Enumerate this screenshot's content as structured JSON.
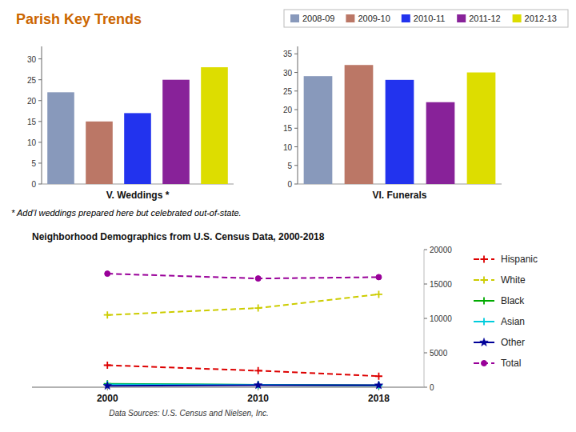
{
  "title": "Parish Key Trends",
  "chart_data": [
    {
      "type": "bar",
      "xlabel": "V. Weddings *",
      "categories": [
        "2008-09",
        "2009-10",
        "2010-11",
        "2011-12",
        "2012-13"
      ],
      "values": [
        22,
        15,
        17,
        25,
        28
      ],
      "colors": [
        "#8899BB",
        "#BB7766",
        "#2233EE",
        "#882299",
        "#DDDD00"
      ],
      "ylim": [
        0,
        33
      ],
      "yticks": [
        0,
        5,
        10,
        15,
        20,
        25,
        30
      ],
      "tick_labels": "y",
      "legend": "top-right",
      "annotations": [
        "* Add’l weddings prepared here but celebrated out-of-state."
      ]
    },
    {
      "type": "bar",
      "xlabel": "VI. Funerals",
      "categories": [
        "2008-09",
        "2009-10",
        "2010-11",
        "2011-12",
        "2012-13"
      ],
      "values": [
        29,
        32,
        28,
        22,
        30
      ],
      "colors": [
        "#8899BB",
        "#BB7766",
        "#2233EE",
        "#882299",
        "#DDDD00"
      ],
      "ylim": [
        0,
        37
      ],
      "yticks": [
        0,
        5,
        10,
        15,
        20,
        25,
        30,
        35
      ],
      "tick_labels": "y"
    },
    {
      "type": "line",
      "title": "Neighborhood Demographics from U.S. Census Data, 2000-2018",
      "x": [
        2000,
        2010,
        2018
      ],
      "xlim": [
        1995,
        2021
      ],
      "xticks": [
        2000,
        2010,
        2018
      ],
      "ylim": [
        0,
        20000
      ],
      "yticks": [
        0,
        5000,
        10000,
        15000,
        20000
      ],
      "legend": "right",
      "series": [
        {
          "name": "Hispanic",
          "color": "#DD0000",
          "line_style": "dashed",
          "marker": "plus",
          "values": [
            3200,
            2400,
            1600
          ]
        },
        {
          "name": "White",
          "color": "#CCCC00",
          "line_style": "dashed",
          "marker": "plus",
          "values": [
            10500,
            11500,
            13500
          ]
        },
        {
          "name": "Black",
          "color": "#00AA00",
          "line_style": "solid",
          "marker": "plus",
          "values": [
            500,
            350,
            250
          ]
        },
        {
          "name": "Asian",
          "color": "#00CCDD",
          "line_style": "solid",
          "marker": "plus",
          "values": [
            400,
            350,
            250
          ]
        },
        {
          "name": "Other",
          "color": "#000099",
          "line_style": "solid",
          "marker": "star",
          "values": [
            200,
            300,
            280
          ]
        },
        {
          "name": "Total",
          "color": "#990099",
          "line_style": "dashed",
          "marker": "circle",
          "values": [
            16500,
            15800,
            16000
          ]
        }
      ],
      "annotations": [
        "Data Sources: U.S. Census and Nielsen, Inc."
      ]
    }
  ]
}
